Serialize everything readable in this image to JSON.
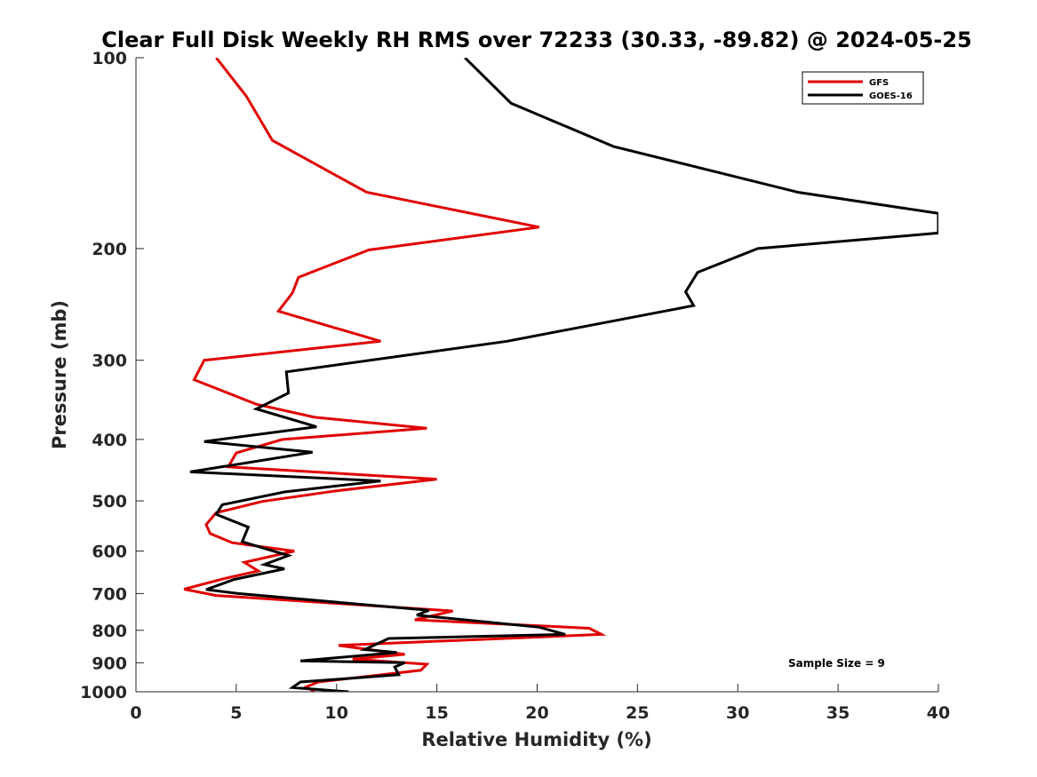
{
  "chart_data": {
    "type": "line",
    "title": "Clear Full Disk Weekly RH RMS over 72233 (30.33, -89.82) @ 2024-05-25",
    "xlabel": "Relative Humidity (%)",
    "ylabel": "Pressure (mb)",
    "xlim": [
      0,
      40
    ],
    "ylim": [
      100,
      1000
    ],
    "y_scale": "log",
    "y_reversed": true,
    "xticks": [
      "0",
      "5",
      "10",
      "15",
      "20",
      "25",
      "30",
      "35",
      "40"
    ],
    "yticks": [
      "100",
      "200",
      "300",
      "400",
      "500",
      "600",
      "700",
      "800",
      "900",
      "1000"
    ],
    "grid": false,
    "legend_position": "top-right",
    "annotation": "Sample Size = 9",
    "series": [
      {
        "name": "GFS",
        "color": "#e00000",
        "points": [
          [
            4.0,
            100
          ],
          [
            5.5,
            115
          ],
          [
            6.8,
            135
          ],
          [
            11.5,
            163
          ],
          [
            20.1,
            185
          ],
          [
            11.6,
            201
          ],
          [
            8.1,
            222
          ],
          [
            7.8,
            235
          ],
          [
            7.1,
            251
          ],
          [
            12.2,
            280
          ],
          [
            3.4,
            300
          ],
          [
            2.9,
            322
          ],
          [
            6.0,
            352
          ],
          [
            8.9,
            369
          ],
          [
            14.5,
            384
          ],
          [
            7.3,
            400
          ],
          [
            5.0,
            420
          ],
          [
            4.6,
            442
          ],
          [
            15.0,
            462
          ],
          [
            10.0,
            482
          ],
          [
            6.3,
            501
          ],
          [
            4.0,
            522
          ],
          [
            3.5,
            545
          ],
          [
            3.7,
            563
          ],
          [
            4.8,
            582
          ],
          [
            7.9,
            600
          ],
          [
            5.4,
            625
          ],
          [
            6.1,
            645
          ],
          [
            4.4,
            663
          ],
          [
            2.4,
            689
          ],
          [
            4.0,
            705
          ],
          [
            15.8,
            746
          ],
          [
            13.9,
            770
          ],
          [
            22.6,
            794
          ],
          [
            23.2,
            812
          ],
          [
            10.1,
            845
          ],
          [
            13.4,
            873
          ],
          [
            10.8,
            888
          ],
          [
            14.5,
            905
          ],
          [
            14.2,
            925
          ],
          [
            9.1,
            965
          ],
          [
            8.5,
            982
          ],
          [
            8.9,
            1000
          ]
        ]
      },
      {
        "name": "GOES-16",
        "color": "#000000",
        "points": [
          [
            16.4,
            100
          ],
          [
            18.7,
            118
          ],
          [
            23.8,
            138
          ],
          [
            33.0,
            163
          ],
          [
            40.0,
            176
          ],
          [
            40.0,
            189
          ],
          [
            31.0,
            200
          ],
          [
            28.0,
            218
          ],
          [
            27.4,
            234
          ],
          [
            27.8,
            246
          ],
          [
            18.5,
            280
          ],
          [
            7.5,
            313
          ],
          [
            7.6,
            338
          ],
          [
            6.0,
            358
          ],
          [
            9.0,
            382
          ],
          [
            3.4,
            403
          ],
          [
            8.8,
            419
          ],
          [
            2.7,
            450
          ],
          [
            12.2,
            465
          ],
          [
            7.4,
            484
          ],
          [
            4.3,
            507
          ],
          [
            4.0,
            525
          ],
          [
            5.6,
            550
          ],
          [
            5.3,
            580
          ],
          [
            7.6,
            610
          ],
          [
            6.4,
            630
          ],
          [
            7.4,
            640
          ],
          [
            4.9,
            665
          ],
          [
            3.5,
            690
          ],
          [
            5.1,
            700
          ],
          [
            14.6,
            744
          ],
          [
            14.0,
            757
          ],
          [
            20.1,
            791
          ],
          [
            21.4,
            812
          ],
          [
            12.6,
            824
          ],
          [
            11.4,
            858
          ],
          [
            13.0,
            867
          ],
          [
            8.2,
            894
          ],
          [
            13.4,
            900
          ],
          [
            12.9,
            914
          ],
          [
            13.1,
            940
          ],
          [
            8.2,
            965
          ],
          [
            7.8,
            985
          ],
          [
            10.6,
            1000
          ]
        ]
      }
    ]
  }
}
